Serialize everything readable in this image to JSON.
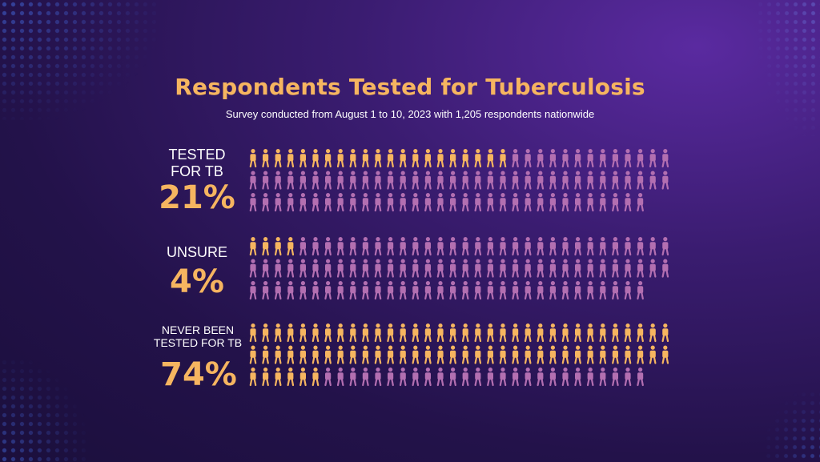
{
  "title": "Respondents Tested for Tuberculosis",
  "subtitle": "Survey conducted from August 1 to 10, 2023 with 1,205 respondents nationwide",
  "colors": {
    "highlight": "#f6b560",
    "base": "#b36fb1",
    "background": "#2a1558"
  },
  "icon": "person-icon",
  "chart_data": {
    "type": "isotype",
    "total_icons_per_group": 100,
    "groups": [
      {
        "label_lines": [
          "TESTED",
          "FOR TB"
        ],
        "percent_label": "21%",
        "value": 21
      },
      {
        "label_lines": [
          "UNSURE"
        ],
        "percent_label": "4%",
        "value": 4
      },
      {
        "label_lines": [
          "NEVER BEEN",
          "TESTED FOR TB"
        ],
        "percent_label": "74%",
        "value": 74
      }
    ]
  }
}
